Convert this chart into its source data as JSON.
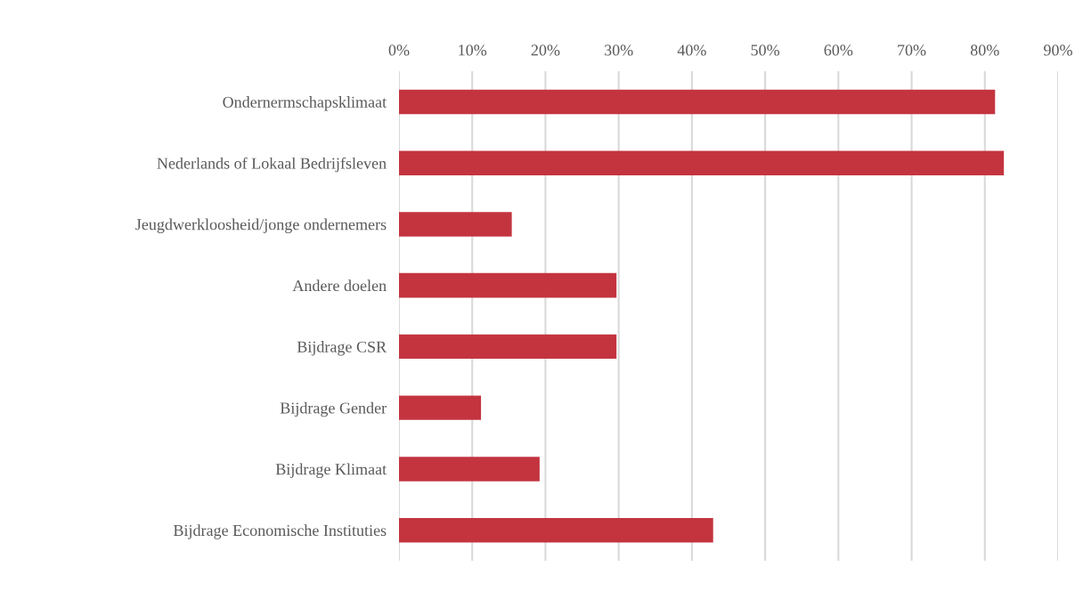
{
  "chart_data": {
    "type": "bar",
    "orientation": "horizontal",
    "categories": [
      "Ondernermschapsklimaat",
      "Nederlands of Lokaal Bedrijfsleven",
      "Jeugdwerkloosheid/jonge ondernemers",
      "Andere doelen",
      "Bijdrage CSR",
      "Bijdrage Gender",
      "Bijdrage Klimaat",
      "Bijdrage Economische Instituties"
    ],
    "values": [
      81.4,
      82.6,
      15.4,
      29.7,
      29.7,
      11.2,
      19.2,
      42.9
    ],
    "color": "#c3343f",
    "xlim": [
      0,
      90
    ],
    "xticks": [
      {
        "value": 0,
        "label": "0%"
      },
      {
        "value": 10,
        "label": "10%"
      },
      {
        "value": 20,
        "label": "20%"
      },
      {
        "value": 30,
        "label": "30%"
      },
      {
        "value": 40,
        "label": "40%"
      },
      {
        "value": 50,
        "label": "50%"
      },
      {
        "value": 60,
        "label": "60%"
      },
      {
        "value": 70,
        "label": "70%"
      },
      {
        "value": 80,
        "label": "80%"
      },
      {
        "value": 90,
        "label": "90%"
      }
    ],
    "grid": "x"
  }
}
